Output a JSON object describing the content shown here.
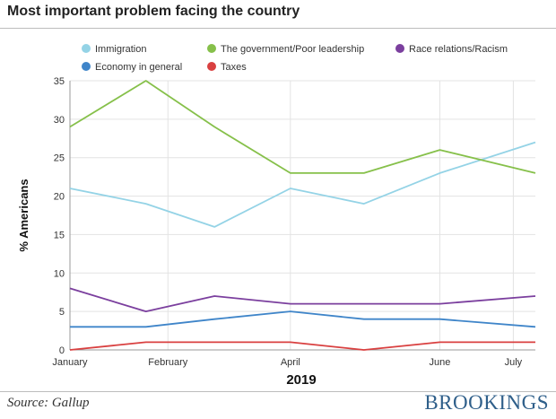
{
  "header": {
    "title": "Most important problem facing the country"
  },
  "footer": {
    "source": "Source: Gallup",
    "brand": "BROOKINGS"
  },
  "chart_data": {
    "type": "line",
    "title": "Most important problem facing the country",
    "xlabel": "2019",
    "ylabel": "% Americans",
    "x": [
      "2019-01-01",
      "2019-02-01",
      "2019-03-01",
      "2019-04-01",
      "2019-05-01",
      "2019-06-01",
      "2019-07-01"
    ],
    "xlim": [
      "2019-01-01",
      "2019-07-10"
    ],
    "x_ticks": [
      {
        "label": "January",
        "date": "2019-01-01"
      },
      {
        "label": "February",
        "date": "2019-02-10"
      },
      {
        "label": "April",
        "date": "2019-04-01"
      },
      {
        "label": "June",
        "date": "2019-06-01"
      },
      {
        "label": "July",
        "date": "2019-07-01"
      }
    ],
    "ylim": [
      0,
      35
    ],
    "yticks": [
      0,
      5,
      10,
      15,
      20,
      25,
      30,
      35
    ],
    "grid": true,
    "legend_placement": "top",
    "series": [
      {
        "name": "Immigration",
        "color": "#94d3e6",
        "x": [
          "2019-01-01",
          "2019-02-01",
          "2019-03-01",
          "2019-04-01",
          "2019-05-01",
          "2019-06-01",
          "2019-07-10"
        ],
        "values": [
          21,
          19,
          16,
          21,
          19,
          23,
          27
        ]
      },
      {
        "name": "The government/Poor leadership",
        "color": "#86c04a",
        "x": [
          "2019-01-01",
          "2019-02-01",
          "2019-03-01",
          "2019-04-01",
          "2019-05-01",
          "2019-06-01",
          "2019-07-10"
        ],
        "values": [
          29,
          35,
          29,
          23,
          23,
          26,
          23
        ]
      },
      {
        "name": "Race relations/Racism",
        "color": "#7b3f9e",
        "x": [
          "2019-01-01",
          "2019-02-01",
          "2019-03-01",
          "2019-04-01",
          "2019-05-01",
          "2019-06-01",
          "2019-07-10"
        ],
        "values": [
          8,
          5,
          7,
          6,
          6,
          6,
          7
        ]
      },
      {
        "name": "Economy in general",
        "color": "#3f85c9",
        "x": [
          "2019-01-01",
          "2019-02-01",
          "2019-03-01",
          "2019-04-01",
          "2019-05-01",
          "2019-06-01",
          "2019-07-10"
        ],
        "values": [
          3,
          3,
          4,
          5,
          4,
          4,
          3
        ]
      },
      {
        "name": "Taxes",
        "color": "#d94040",
        "x": [
          "2019-01-01",
          "2019-02-01",
          "2019-03-01",
          "2019-04-01",
          "2019-05-01",
          "2019-06-01",
          "2019-07-10"
        ],
        "values": [
          0,
          1,
          1,
          1,
          0,
          1,
          1
        ]
      }
    ]
  }
}
